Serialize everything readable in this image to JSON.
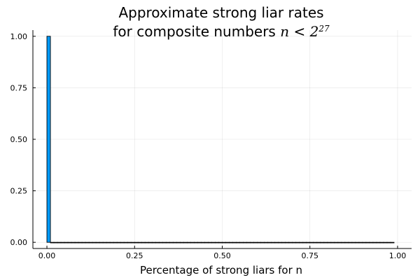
{
  "chart_data": {
    "type": "bar",
    "title_line1": "Approximate strong liar rates",
    "title_line2_prefix": "for composite numbers ",
    "title_math_var": "n",
    "title_math_op": " < ",
    "title_math_base": "2",
    "title_math_exp": "27",
    "xlabel": "Percentage of strong liars for n",
    "ylabel": "",
    "xlim": [
      -0.04,
      1.04
    ],
    "ylim": [
      -0.03,
      1.03
    ],
    "xticks": [
      0.0,
      0.25,
      0.5,
      0.75,
      1.0
    ],
    "xtick_labels": [
      "0.00",
      "0.25",
      "0.50",
      "0.75",
      "1.00"
    ],
    "yticks": [
      0.0,
      0.25,
      0.5,
      0.75,
      1.0
    ],
    "ytick_labels": [
      "0.00",
      "0.25",
      "0.50",
      "0.75",
      "1.00"
    ],
    "grid": true,
    "legend": "none",
    "bin_width": 0.01,
    "bins_start": 0.0,
    "bins_end": 0.99,
    "values": [
      1.0,
      0,
      0,
      0,
      0,
      0,
      0,
      0,
      0,
      0,
      0,
      0,
      0,
      0,
      0,
      0,
      0,
      0,
      0,
      0,
      0,
      0,
      0,
      0,
      0,
      0,
      0,
      0,
      0,
      0,
      0,
      0,
      0,
      0,
      0,
      0,
      0,
      0,
      0,
      0,
      0,
      0,
      0,
      0,
      0,
      0,
      0,
      0,
      0,
      0,
      0,
      0,
      0,
      0,
      0,
      0,
      0,
      0,
      0,
      0,
      0,
      0,
      0,
      0,
      0,
      0,
      0,
      0,
      0,
      0,
      0,
      0,
      0,
      0,
      0,
      0,
      0,
      0,
      0,
      0,
      0,
      0,
      0,
      0,
      0,
      0,
      0,
      0,
      0,
      0,
      0,
      0,
      0,
      0,
      0,
      0,
      0,
      0,
      0
    ],
    "bar_color": "#009AFA",
    "edge_color": "#000000"
  }
}
